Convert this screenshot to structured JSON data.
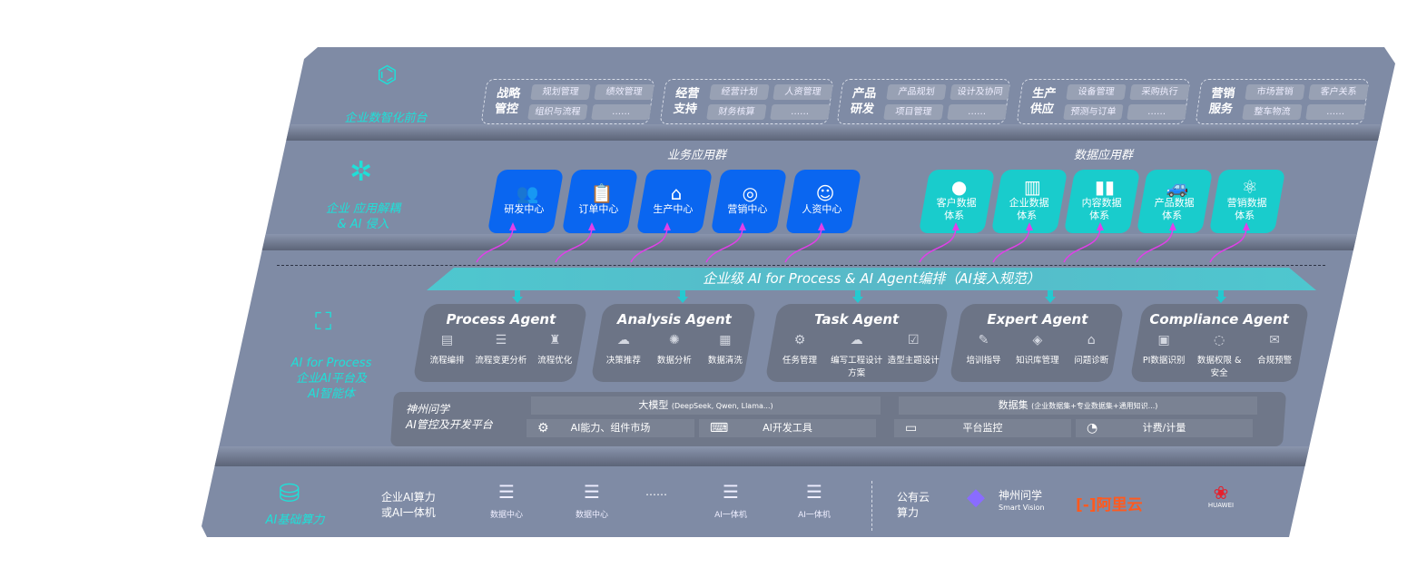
{
  "front": {
    "label": "企业数智化前台",
    "icon": "brain-icon",
    "groups": [
      {
        "title": "战略管控",
        "items": [
          "规划管理",
          "绩效管理",
          "组织与流程",
          "……"
        ]
      },
      {
        "title": "经营支持",
        "items": [
          "经营计划",
          "人资管理",
          "财务核算",
          "……"
        ]
      },
      {
        "title": "产品研发",
        "items": [
          "产品规划",
          "设计及协同",
          "项目管理",
          "……"
        ]
      },
      {
        "title": "生产供应",
        "items": [
          "设备管理",
          "采购执行",
          "预测与订单",
          "……"
        ]
      },
      {
        "title": "营销服务",
        "items": [
          "市场营销",
          "客户关系",
          "整车物流",
          "……"
        ]
      }
    ]
  },
  "apps": {
    "label1": "企业 应用解耦",
    "label2": "& AI 侵入",
    "icon": "network-node-icon",
    "business_title": "业务应用群",
    "data_title": "数据应用群",
    "business": [
      {
        "label": "研发中心",
        "icon": "users-icon"
      },
      {
        "label": "订单中心",
        "icon": "clipboard-icon"
      },
      {
        "label": "生产中心",
        "icon": "factory-icon"
      },
      {
        "label": "营销中心",
        "icon": "target-icon"
      },
      {
        "label": "人资中心",
        "icon": "person-icon"
      }
    ],
    "data": [
      {
        "l1": "客户数据",
        "l2": "体系",
        "icon": "user-icon"
      },
      {
        "l1": "企业数据",
        "l2": "体系",
        "icon": "building-icon"
      },
      {
        "l1": "内容数据",
        "l2": "体系",
        "icon": "books-icon"
      },
      {
        "l1": "产品数据",
        "l2": "体系",
        "icon": "car-icon"
      },
      {
        "l1": "营销数据",
        "l2": "体系",
        "icon": "atom-icon"
      }
    ]
  },
  "banner": "企业级 AI for Process & AI Agent编排（AI接入规范）",
  "process": {
    "l1": "AI for Process",
    "l2": "企业AI平台及",
    "l3": "AI智能体",
    "icon": "face-scan-icon",
    "agents": [
      {
        "title": "Process Agent",
        "items": [
          "流程编排",
          "流程变更分析",
          "流程优化"
        ]
      },
      {
        "title": "Analysis Agent",
        "items": [
          "决策推荐",
          "数据分析",
          "数据清洗"
        ]
      },
      {
        "title": "Task Agent",
        "items": [
          "任务管理",
          "编写工程设计方案",
          "造型主题设计"
        ]
      },
      {
        "title": "Expert Agent",
        "items": [
          "培训指导",
          "知识库管理",
          "问题诊断"
        ]
      },
      {
        "title": "Compliance Agent",
        "items": [
          "PI数据识别",
          "数据权限 & 安全",
          "合规预警"
        ]
      }
    ]
  },
  "platform": {
    "name1": "神州问学",
    "name2": "AI管控及开发平台",
    "model": "大模型",
    "model_note": "(DeepSeek, Qwen, Llama...)",
    "dataset": "数据集",
    "dataset_note": "(企业数据集+专业数据集+通用知识...)",
    "tools": [
      "AI能力、组件市场",
      "AI开发工具",
      "平台监控",
      "计费/计量"
    ]
  },
  "infra": {
    "label": "AI基础算力",
    "icon": "database-icon",
    "enterprise1": "企业AI算力",
    "enterprise2": "或AI一体机",
    "servers": [
      "数据中心",
      "数据中心",
      "AI一体机",
      "AI一体机"
    ],
    "ellipsis": "……",
    "cloud1": "公有云",
    "cloud2": "算力",
    "vendor1": "神州问学",
    "vendor1_sub": "Smart Vision",
    "vendor2": "阿里云",
    "vendor3": "HUAWEI"
  },
  "colors": {
    "panel": "#7f8ba5",
    "accent": "#1fe0d8",
    "blue": "#0a66f0",
    "teal": "#19cccc",
    "arrow": "#e040e8"
  }
}
